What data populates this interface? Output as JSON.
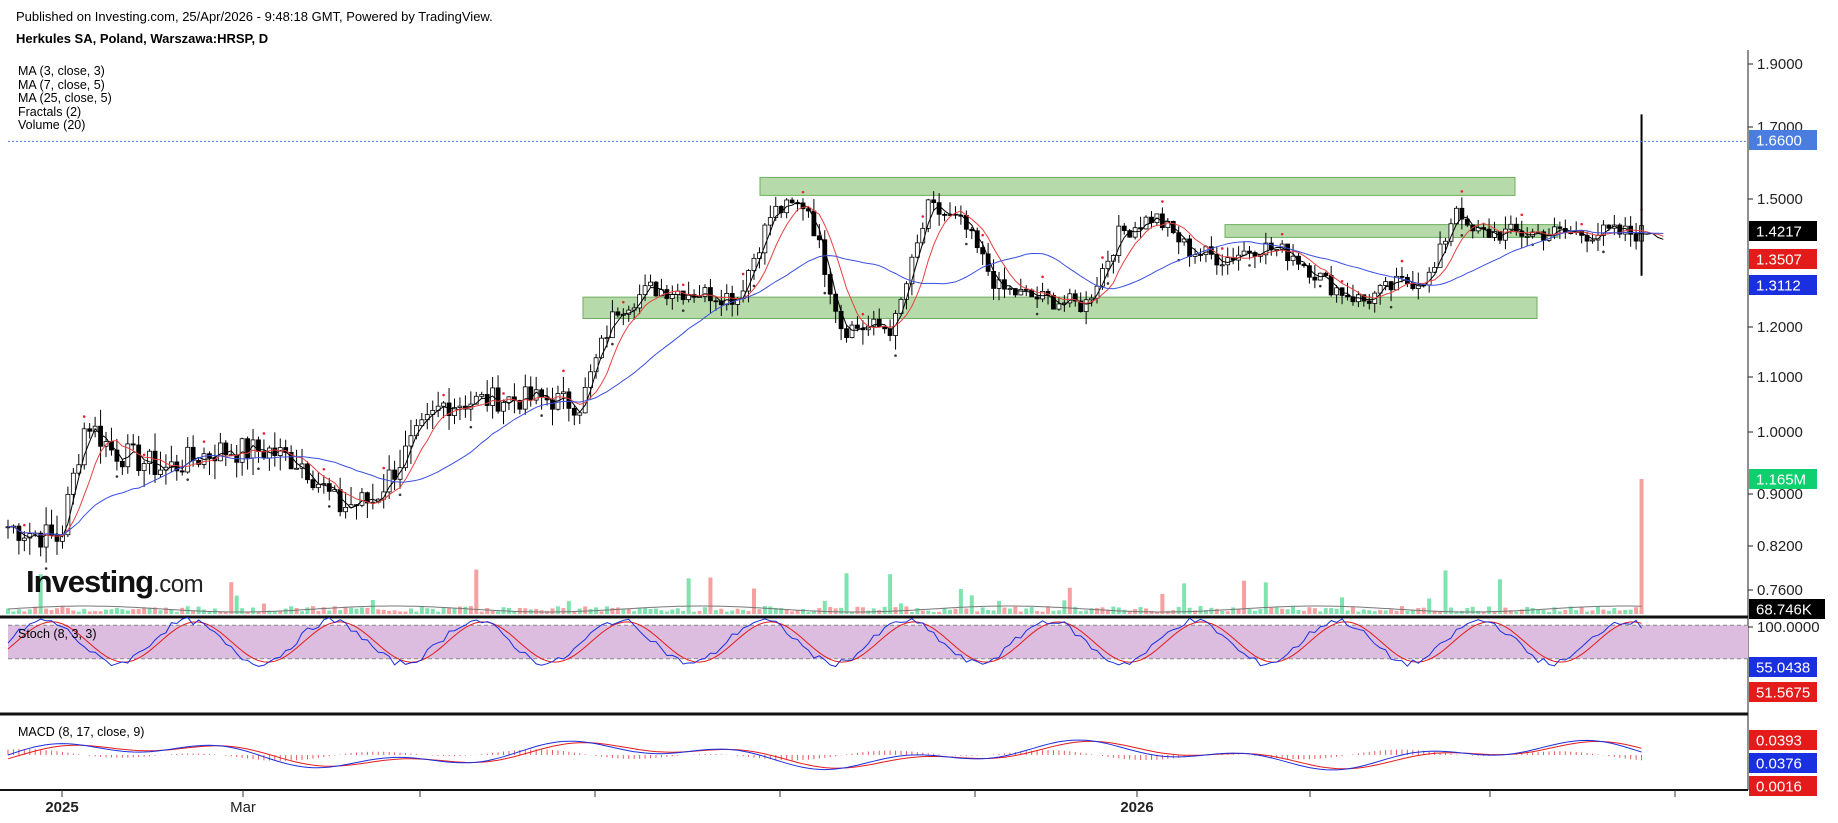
{
  "header": {
    "published": "Published on Investing.com, 25/Apr/2026 - 9:48:18 GMT, Powered by TradingView.",
    "symbol": "Herkules SA, Poland, Warszawa:HRSP, D"
  },
  "indicators": [
    "MA (3, close, 3)",
    "MA (7, close, 5)",
    "MA (25, close, 5)",
    "Fractals (2)",
    "Volume (20)"
  ],
  "logo": {
    "word": "Investing",
    "suffix": ".com"
  },
  "colors": {
    "ma_fast": "#000000",
    "ma_mid": "#e84040",
    "ma_slow": "#3a4fe0",
    "zone": "#a9d39b",
    "volume": "#7fe3b0",
    "stoch_band": "#dcbde0",
    "last_price": "#4a7ddf"
  },
  "chart_data": [
    {
      "type": "candlestick",
      "title": "Herkules SA, Poland, Warszawa:HRSP, D",
      "x_tick_labels": [
        "2025",
        "Mar",
        "2026"
      ],
      "y_tick_labels": [
        "1.9000",
        "1.7000",
        "1.5000",
        "1.2000",
        "1.1000",
        "1.0000",
        "0.9000",
        "0.8200",
        "0.7600"
      ],
      "ylim": [
        0.72,
        1.93
      ],
      "price_tags": [
        {
          "label": "1.6600",
          "value": 1.66,
          "color": "#4a7ddf"
        },
        {
          "label": "1.4217",
          "value": 1.4217,
          "color": "#000000"
        },
        {
          "label": "1.3507",
          "value": 1.3507,
          "color": "#e41b1b"
        },
        {
          "label": "1.3112",
          "value": 1.3112,
          "color": "#1a2fe0"
        },
        {
          "label": "1.165M",
          "value": 0.93,
          "color": "#0fcf6f"
        },
        {
          "label": "68.746K",
          "value": 0.726,
          "color": "#000000"
        }
      ],
      "zones": [
        [
          1.51,
          1.56
        ],
        [
          1.41,
          1.44
        ],
        [
          1.22,
          1.27
        ]
      ],
      "close_path": [
        [
          0,
          0.85
        ],
        [
          0.03,
          0.83
        ],
        [
          0.045,
          1.02
        ],
        [
          0.06,
          0.97
        ],
        [
          0.09,
          0.94
        ],
        [
          0.12,
          0.97
        ],
        [
          0.15,
          0.97
        ],
        [
          0.17,
          0.95
        ],
        [
          0.19,
          0.88
        ],
        [
          0.21,
          0.89
        ],
        [
          0.23,
          0.97
        ],
        [
          0.25,
          1.05
        ],
        [
          0.28,
          1.06
        ],
        [
          0.31,
          1.06
        ],
        [
          0.33,
          1.05
        ],
        [
          0.35,
          1.24
        ],
        [
          0.37,
          1.29
        ],
        [
          0.4,
          1.28
        ],
        [
          0.42,
          1.27
        ],
        [
          0.44,
          1.47
        ],
        [
          0.46,
          1.49
        ],
        [
          0.48,
          1.2
        ],
        [
          0.51,
          1.2
        ],
        [
          0.53,
          1.48
        ],
        [
          0.55,
          1.44
        ],
        [
          0.57,
          1.29
        ],
        [
          0.59,
          1.27
        ],
        [
          0.62,
          1.25
        ],
        [
          0.64,
          1.42
        ],
        [
          0.66,
          1.46
        ],
        [
          0.68,
          1.38
        ],
        [
          0.7,
          1.36
        ],
        [
          0.72,
          1.39
        ],
        [
          0.74,
          1.37
        ],
        [
          0.76,
          1.3
        ],
        [
          0.78,
          1.26
        ],
        [
          0.8,
          1.3
        ],
        [
          0.82,
          1.32
        ],
        [
          0.835,
          1.5
        ],
        [
          0.84,
          1.42
        ]
      ]
    },
    {
      "type": "line",
      "title": "Stoch (8, 3, 3)",
      "y_tick_labels": [
        "100.0000"
      ],
      "ylim": [
        0,
        100
      ],
      "band": [
        20,
        80
      ],
      "last_values": [
        {
          "label": "55.0438",
          "value": 55.04,
          "color": "#1a2fe0"
        },
        {
          "label": "51.5675",
          "value": 51.57,
          "color": "#e41b1b"
        }
      ]
    },
    {
      "type": "line",
      "title": "MACD (8, 17, close, 9)",
      "last_values": [
        {
          "label": "0.0393",
          "value": 0.0393,
          "color": "#e41b1b"
        },
        {
          "label": "0.0376",
          "value": 0.0376,
          "color": "#1a2fe0"
        },
        {
          "label": "0.0016",
          "value": 0.0016,
          "color": "#e41b1b"
        }
      ]
    }
  ]
}
